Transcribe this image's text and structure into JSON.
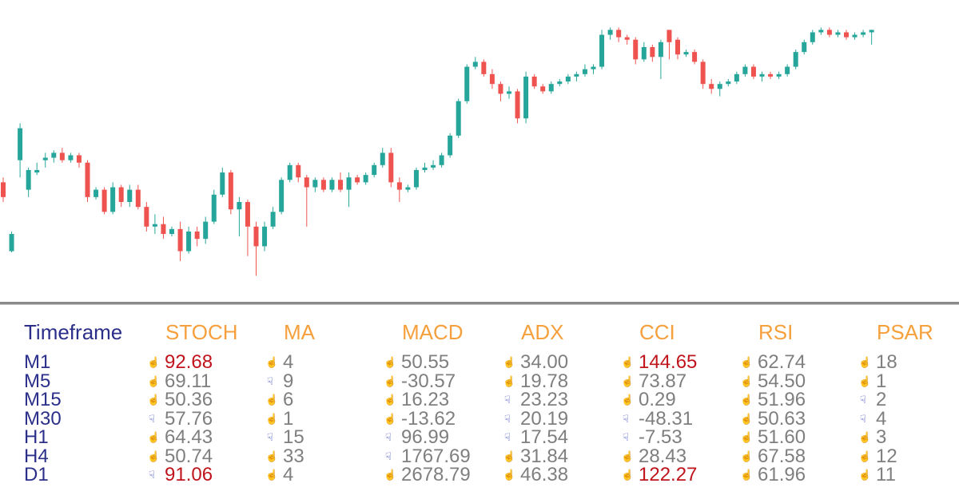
{
  "colors": {
    "bull": "#26a69a",
    "bear": "#ef5350",
    "header": "#f5a03c",
    "timeframe": "#2b2f8a",
    "value": "#7f7f7f",
    "extreme": "#c0141c",
    "up_icon": "#f5a623",
    "down_icon": "#2b3bb5"
  },
  "chart": {
    "candles": [
      {
        "o": 0.48,
        "h": 0.5,
        "l": 0.4,
        "c": 0.42,
        "d": "bear"
      },
      {
        "o": 0.27,
        "h": 0.28,
        "l": 0.195,
        "c": 0.2,
        "d": "bull"
      },
      {
        "o": 0.57,
        "h": 0.72,
        "l": 0.5,
        "c": 0.7,
        "d": "bull"
      },
      {
        "o": 0.53,
        "h": 0.54,
        "l": 0.42,
        "c": 0.45,
        "d": "bull"
      },
      {
        "o": 0.52,
        "h": 0.56,
        "l": 0.51,
        "c": 0.53,
        "d": "bull"
      },
      {
        "o": 0.57,
        "h": 0.6,
        "l": 0.54,
        "c": 0.58,
        "d": "bull"
      },
      {
        "o": 0.58,
        "h": 0.61,
        "l": 0.56,
        "c": 0.6,
        "d": "bull"
      },
      {
        "o": 0.6,
        "h": 0.62,
        "l": 0.56,
        "c": 0.57,
        "d": "bear"
      },
      {
        "o": 0.57,
        "h": 0.6,
        "l": 0.56,
        "c": 0.59,
        "d": "bull"
      },
      {
        "o": 0.59,
        "h": 0.6,
        "l": 0.54,
        "c": 0.56,
        "d": "bear"
      },
      {
        "o": 0.56,
        "h": 0.57,
        "l": 0.4,
        "c": 0.42,
        "d": "bear"
      },
      {
        "o": 0.42,
        "h": 0.46,
        "l": 0.41,
        "c": 0.45,
        "d": "bull"
      },
      {
        "o": 0.45,
        "h": 0.46,
        "l": 0.35,
        "c": 0.36,
        "d": "bear"
      },
      {
        "o": 0.36,
        "h": 0.48,
        "l": 0.35,
        "c": 0.46,
        "d": "bull"
      },
      {
        "o": 0.46,
        "h": 0.47,
        "l": 0.38,
        "c": 0.4,
        "d": "bear"
      },
      {
        "o": 0.4,
        "h": 0.47,
        "l": 0.38,
        "c": 0.45,
        "d": "bull"
      },
      {
        "o": 0.45,
        "h": 0.47,
        "l": 0.37,
        "c": 0.38,
        "d": "bear"
      },
      {
        "o": 0.38,
        "h": 0.4,
        "l": 0.28,
        "c": 0.3,
        "d": "bear"
      },
      {
        "o": 0.3,
        "h": 0.35,
        "l": 0.27,
        "c": 0.31,
        "d": "bull"
      },
      {
        "o": 0.31,
        "h": 0.34,
        "l": 0.25,
        "c": 0.27,
        "d": "bear"
      },
      {
        "o": 0.27,
        "h": 0.3,
        "l": 0.26,
        "c": 0.29,
        "d": "bull"
      },
      {
        "o": 0.29,
        "h": 0.32,
        "l": 0.16,
        "c": 0.2,
        "d": "bear"
      },
      {
        "o": 0.2,
        "h": 0.3,
        "l": 0.19,
        "c": 0.28,
        "d": "bull"
      },
      {
        "o": 0.28,
        "h": 0.3,
        "l": 0.22,
        "c": 0.25,
        "d": "bear"
      },
      {
        "o": 0.25,
        "h": 0.34,
        "l": 0.23,
        "c": 0.32,
        "d": "bull"
      },
      {
        "o": 0.32,
        "h": 0.45,
        "l": 0.31,
        "c": 0.43,
        "d": "bull"
      },
      {
        "o": 0.43,
        "h": 0.54,
        "l": 0.42,
        "c": 0.52,
        "d": "bull"
      },
      {
        "o": 0.52,
        "h": 0.53,
        "l": 0.35,
        "c": 0.37,
        "d": "bear"
      },
      {
        "o": 0.37,
        "h": 0.42,
        "l": 0.26,
        "c": 0.4,
        "d": "bull"
      },
      {
        "o": 0.4,
        "h": 0.41,
        "l": 0.18,
        "c": 0.3,
        "d": "bear"
      },
      {
        "o": 0.3,
        "h": 0.32,
        "l": 0.1,
        "c": 0.22,
        "d": "bear"
      },
      {
        "o": 0.22,
        "h": 0.32,
        "l": 0.2,
        "c": 0.3,
        "d": "bull"
      },
      {
        "o": 0.3,
        "h": 0.38,
        "l": 0.29,
        "c": 0.36,
        "d": "bull"
      },
      {
        "o": 0.36,
        "h": 0.5,
        "l": 0.35,
        "c": 0.49,
        "d": "bull"
      },
      {
        "o": 0.49,
        "h": 0.56,
        "l": 0.48,
        "c": 0.55,
        "d": "bull"
      },
      {
        "o": 0.55,
        "h": 0.56,
        "l": 0.48,
        "c": 0.5,
        "d": "bear"
      },
      {
        "o": 0.5,
        "h": 0.51,
        "l": 0.3,
        "c": 0.46,
        "d": "bear"
      },
      {
        "o": 0.46,
        "h": 0.5,
        "l": 0.44,
        "c": 0.49,
        "d": "bull"
      },
      {
        "o": 0.49,
        "h": 0.5,
        "l": 0.44,
        "c": 0.45,
        "d": "bear"
      },
      {
        "o": 0.45,
        "h": 0.5,
        "l": 0.44,
        "c": 0.49,
        "d": "bull"
      },
      {
        "o": 0.49,
        "h": 0.52,
        "l": 0.44,
        "c": 0.45,
        "d": "bear"
      },
      {
        "o": 0.45,
        "h": 0.52,
        "l": 0.38,
        "c": 0.5,
        "d": "bull"
      },
      {
        "o": 0.5,
        "h": 0.51,
        "l": 0.47,
        "c": 0.48,
        "d": "bear"
      },
      {
        "o": 0.48,
        "h": 0.52,
        "l": 0.47,
        "c": 0.51,
        "d": "bull"
      },
      {
        "o": 0.51,
        "h": 0.56,
        "l": 0.5,
        "c": 0.55,
        "d": "bull"
      },
      {
        "o": 0.55,
        "h": 0.62,
        "l": 0.54,
        "c": 0.6,
        "d": "bull"
      },
      {
        "o": 0.6,
        "h": 0.62,
        "l": 0.46,
        "c": 0.48,
        "d": "bear"
      },
      {
        "o": 0.48,
        "h": 0.5,
        "l": 0.4,
        "c": 0.45,
        "d": "bear"
      },
      {
        "o": 0.45,
        "h": 0.47,
        "l": 0.44,
        "c": 0.46,
        "d": "bull"
      },
      {
        "o": 0.46,
        "h": 0.54,
        "l": 0.45,
        "c": 0.53,
        "d": "bull"
      },
      {
        "o": 0.53,
        "h": 0.56,
        "l": 0.52,
        "c": 0.54,
        "d": "bull"
      },
      {
        "o": 0.54,
        "h": 0.57,
        "l": 0.53,
        "c": 0.55,
        "d": "bull"
      },
      {
        "o": 0.55,
        "h": 0.6,
        "l": 0.54,
        "c": 0.59,
        "d": "bull"
      },
      {
        "o": 0.59,
        "h": 0.68,
        "l": 0.58,
        "c": 0.67,
        "d": "bull"
      },
      {
        "o": 0.67,
        "h": 0.82,
        "l": 0.66,
        "c": 0.81,
        "d": "bull"
      },
      {
        "o": 0.81,
        "h": 0.96,
        "l": 0.8,
        "c": 0.95,
        "d": "bull"
      },
      {
        "o": 0.95,
        "h": 0.99,
        "l": 0.94,
        "c": 0.97,
        "d": "bull"
      },
      {
        "o": 0.97,
        "h": 0.98,
        "l": 0.91,
        "c": 0.92,
        "d": "bear"
      },
      {
        "o": 0.92,
        "h": 0.94,
        "l": 0.86,
        "c": 0.88,
        "d": "bear"
      },
      {
        "o": 0.88,
        "h": 0.89,
        "l": 0.81,
        "c": 0.84,
        "d": "bear"
      },
      {
        "o": 0.84,
        "h": 0.87,
        "l": 0.82,
        "c": 0.85,
        "d": "bull"
      },
      {
        "o": 0.85,
        "h": 0.86,
        "l": 0.72,
        "c": 0.74,
        "d": "bear"
      },
      {
        "o": 0.74,
        "h": 0.93,
        "l": 0.72,
        "c": 0.91,
        "d": "bull"
      },
      {
        "o": 0.91,
        "h": 0.92,
        "l": 0.86,
        "c": 0.87,
        "d": "bear"
      },
      {
        "o": 0.87,
        "h": 0.88,
        "l": 0.84,
        "c": 0.85,
        "d": "bear"
      },
      {
        "o": 0.85,
        "h": 0.89,
        "l": 0.84,
        "c": 0.88,
        "d": "bull"
      },
      {
        "o": 0.88,
        "h": 0.9,
        "l": 0.87,
        "c": 0.89,
        "d": "bull"
      },
      {
        "o": 0.89,
        "h": 0.92,
        "l": 0.88,
        "c": 0.91,
        "d": "bull"
      },
      {
        "o": 0.91,
        "h": 0.93,
        "l": 0.89,
        "c": 0.92,
        "d": "bull"
      },
      {
        "o": 0.92,
        "h": 0.96,
        "l": 0.91,
        "c": 0.94,
        "d": "bull"
      },
      {
        "o": 0.94,
        "h": 0.96,
        "l": 0.92,
        "c": 0.95,
        "d": "bull"
      },
      {
        "o": 0.95,
        "h": 1.1,
        "l": 0.94,
        "c": 1.08,
        "d": "bull"
      },
      {
        "o": 1.08,
        "h": 1.11,
        "l": 1.06,
        "c": 1.1,
        "d": "bull"
      },
      {
        "o": 1.1,
        "h": 1.11,
        "l": 1.05,
        "c": 1.07,
        "d": "bear"
      },
      {
        "o": 1.07,
        "h": 1.08,
        "l": 1.04,
        "c": 1.06,
        "d": "bear"
      },
      {
        "o": 1.06,
        "h": 1.07,
        "l": 0.96,
        "c": 0.98,
        "d": "bear"
      },
      {
        "o": 0.98,
        "h": 1.05,
        "l": 0.97,
        "c": 1.03,
        "d": "bull"
      },
      {
        "o": 1.03,
        "h": 1.04,
        "l": 0.97,
        "c": 0.99,
        "d": "bear"
      },
      {
        "o": 0.99,
        "h": 1.06,
        "l": 0.9,
        "c": 1.05,
        "d": "bull"
      },
      {
        "o": 1.05,
        "h": 1.1,
        "l": 0.98,
        "c": 1.1,
        "d": "bear"
      },
      {
        "o": 1.06,
        "h": 1.07,
        "l": 0.98,
        "c": 1.0,
        "d": "bear"
      },
      {
        "o": 1.0,
        "h": 1.02,
        "l": 0.99,
        "c": 1.01,
        "d": "bull"
      },
      {
        "o": 1.01,
        "h": 1.02,
        "l": 0.96,
        "c": 0.97,
        "d": "bear"
      },
      {
        "o": 0.97,
        "h": 0.98,
        "l": 0.86,
        "c": 0.88,
        "d": "bear"
      },
      {
        "o": 0.88,
        "h": 0.9,
        "l": 0.84,
        "c": 0.86,
        "d": "bear"
      },
      {
        "o": 0.86,
        "h": 0.89,
        "l": 0.83,
        "c": 0.88,
        "d": "bull"
      },
      {
        "o": 0.88,
        "h": 0.9,
        "l": 0.87,
        "c": 0.89,
        "d": "bull"
      },
      {
        "o": 0.89,
        "h": 0.93,
        "l": 0.88,
        "c": 0.92,
        "d": "bull"
      },
      {
        "o": 0.92,
        "h": 0.96,
        "l": 0.91,
        "c": 0.95,
        "d": "bull"
      },
      {
        "o": 0.95,
        "h": 0.96,
        "l": 0.9,
        "c": 0.91,
        "d": "bear"
      },
      {
        "o": 0.91,
        "h": 0.93,
        "l": 0.89,
        "c": 0.92,
        "d": "bull"
      },
      {
        "o": 0.92,
        "h": 0.93,
        "l": 0.9,
        "c": 0.91,
        "d": "bear"
      },
      {
        "o": 0.91,
        "h": 0.93,
        "l": 0.9,
        "c": 0.92,
        "d": "bull"
      },
      {
        "o": 0.92,
        "h": 0.96,
        "l": 0.91,
        "c": 0.95,
        "d": "bull"
      },
      {
        "o": 0.95,
        "h": 1.02,
        "l": 0.94,
        "c": 1.01,
        "d": "bull"
      },
      {
        "o": 1.01,
        "h": 1.06,
        "l": 1.0,
        "c": 1.05,
        "d": "bull"
      },
      {
        "o": 1.05,
        "h": 1.1,
        "l": 1.04,
        "c": 1.09,
        "d": "bull"
      },
      {
        "o": 1.09,
        "h": 1.11,
        "l": 1.08,
        "c": 1.1,
        "d": "bull"
      },
      {
        "o": 1.1,
        "h": 1.11,
        "l": 1.07,
        "c": 1.08,
        "d": "bear"
      },
      {
        "o": 1.08,
        "h": 1.1,
        "l": 1.07,
        "c": 1.09,
        "d": "bull"
      },
      {
        "o": 1.09,
        "h": 1.1,
        "l": 1.06,
        "c": 1.07,
        "d": "bear"
      },
      {
        "o": 1.07,
        "h": 1.09,
        "l": 1.06,
        "c": 1.08,
        "d": "bull"
      },
      {
        "o": 1.08,
        "h": 1.1,
        "l": 1.07,
        "c": 1.09,
        "d": "bull"
      },
      {
        "o": 1.09,
        "h": 1.1,
        "l": 1.04,
        "c": 1.1,
        "d": "bull"
      }
    ]
  },
  "panel": {
    "headers": [
      "Timeframe",
      "STOCH",
      "MA",
      "MACD",
      "ADX",
      "CCI",
      "RSI",
      "PSAR"
    ],
    "timeframes": [
      "M1",
      "M5",
      "M15",
      "M30",
      "H1",
      "H4",
      "D1"
    ],
    "columns": [
      {
        "name": "STOCH",
        "cells": [
          {
            "dir": "up",
            "value": "92.68",
            "extreme": true
          },
          {
            "dir": "up",
            "value": "69.11",
            "extreme": false
          },
          {
            "dir": "up",
            "value": "50.36",
            "extreme": false
          },
          {
            "dir": "down",
            "value": "57.76",
            "extreme": false
          },
          {
            "dir": "up",
            "value": "64.43",
            "extreme": false
          },
          {
            "dir": "up",
            "value": "50.74",
            "extreme": false
          },
          {
            "dir": "down",
            "value": "91.06",
            "extreme": true
          }
        ]
      },
      {
        "name": "MA",
        "cells": [
          {
            "dir": "up",
            "value": "4",
            "extreme": false
          },
          {
            "dir": "down",
            "value": "9",
            "extreme": false
          },
          {
            "dir": "up",
            "value": "6",
            "extreme": false
          },
          {
            "dir": "up",
            "value": "1",
            "extreme": false
          },
          {
            "dir": "down",
            "value": "15",
            "extreme": false
          },
          {
            "dir": "up",
            "value": "33",
            "extreme": false
          },
          {
            "dir": "up",
            "value": "4",
            "extreme": false
          }
        ]
      },
      {
        "name": "MACD",
        "cells": [
          {
            "dir": "up",
            "value": "50.55",
            "extreme": false
          },
          {
            "dir": "up",
            "value": "-30.57",
            "extreme": false
          },
          {
            "dir": "up",
            "value": "16.23",
            "extreme": false
          },
          {
            "dir": "up",
            "value": "-13.62",
            "extreme": false
          },
          {
            "dir": "down",
            "value": "96.99",
            "extreme": false
          },
          {
            "dir": "down",
            "value": "1767.69",
            "extreme": false
          },
          {
            "dir": "up",
            "value": "2678.79",
            "extreme": false
          }
        ]
      },
      {
        "name": "ADX",
        "cells": [
          {
            "dir": "up",
            "value": "34.00",
            "extreme": false
          },
          {
            "dir": "up",
            "value": "19.78",
            "extreme": false
          },
          {
            "dir": "down",
            "value": "23.23",
            "extreme": false
          },
          {
            "dir": "down",
            "value": "20.19",
            "extreme": false
          },
          {
            "dir": "down",
            "value": "17.54",
            "extreme": false
          },
          {
            "dir": "up",
            "value": "31.84",
            "extreme": false
          },
          {
            "dir": "up",
            "value": "46.38",
            "extreme": false
          }
        ]
      },
      {
        "name": "CCI",
        "cells": [
          {
            "dir": "up",
            "value": "144.65",
            "extreme": true
          },
          {
            "dir": "up",
            "value": "73.87",
            "extreme": false
          },
          {
            "dir": "up",
            "value": "0.29",
            "extreme": false
          },
          {
            "dir": "down",
            "value": "-48.31",
            "extreme": false
          },
          {
            "dir": "down",
            "value": "-7.53",
            "extreme": false
          },
          {
            "dir": "up",
            "value": "28.43",
            "extreme": false
          },
          {
            "dir": "up",
            "value": "122.27",
            "extreme": true
          }
        ]
      },
      {
        "name": "RSI",
        "cells": [
          {
            "dir": "up",
            "value": "62.74",
            "extreme": false
          },
          {
            "dir": "up",
            "value": "54.50",
            "extreme": false
          },
          {
            "dir": "up",
            "value": "51.96",
            "extreme": false
          },
          {
            "dir": "up",
            "value": "50.63",
            "extreme": false
          },
          {
            "dir": "up",
            "value": "51.60",
            "extreme": false
          },
          {
            "dir": "up",
            "value": "67.58",
            "extreme": false
          },
          {
            "dir": "up",
            "value": "61.96",
            "extreme": false
          }
        ]
      },
      {
        "name": "PSAR",
        "cells": [
          {
            "dir": "up",
            "value": "18",
            "extreme": false
          },
          {
            "dir": "up",
            "value": "1",
            "extreme": false
          },
          {
            "dir": "down",
            "value": "2",
            "extreme": false
          },
          {
            "dir": "down",
            "value": "4",
            "extreme": false
          },
          {
            "dir": "up",
            "value": "3",
            "extreme": false
          },
          {
            "dir": "up",
            "value": "12",
            "extreme": false
          },
          {
            "dir": "up",
            "value": "11",
            "extreme": false
          }
        ]
      }
    ],
    "icons": {
      "up": "hand-pointing-up-icon",
      "down": "hand-pointing-down-icon"
    }
  }
}
